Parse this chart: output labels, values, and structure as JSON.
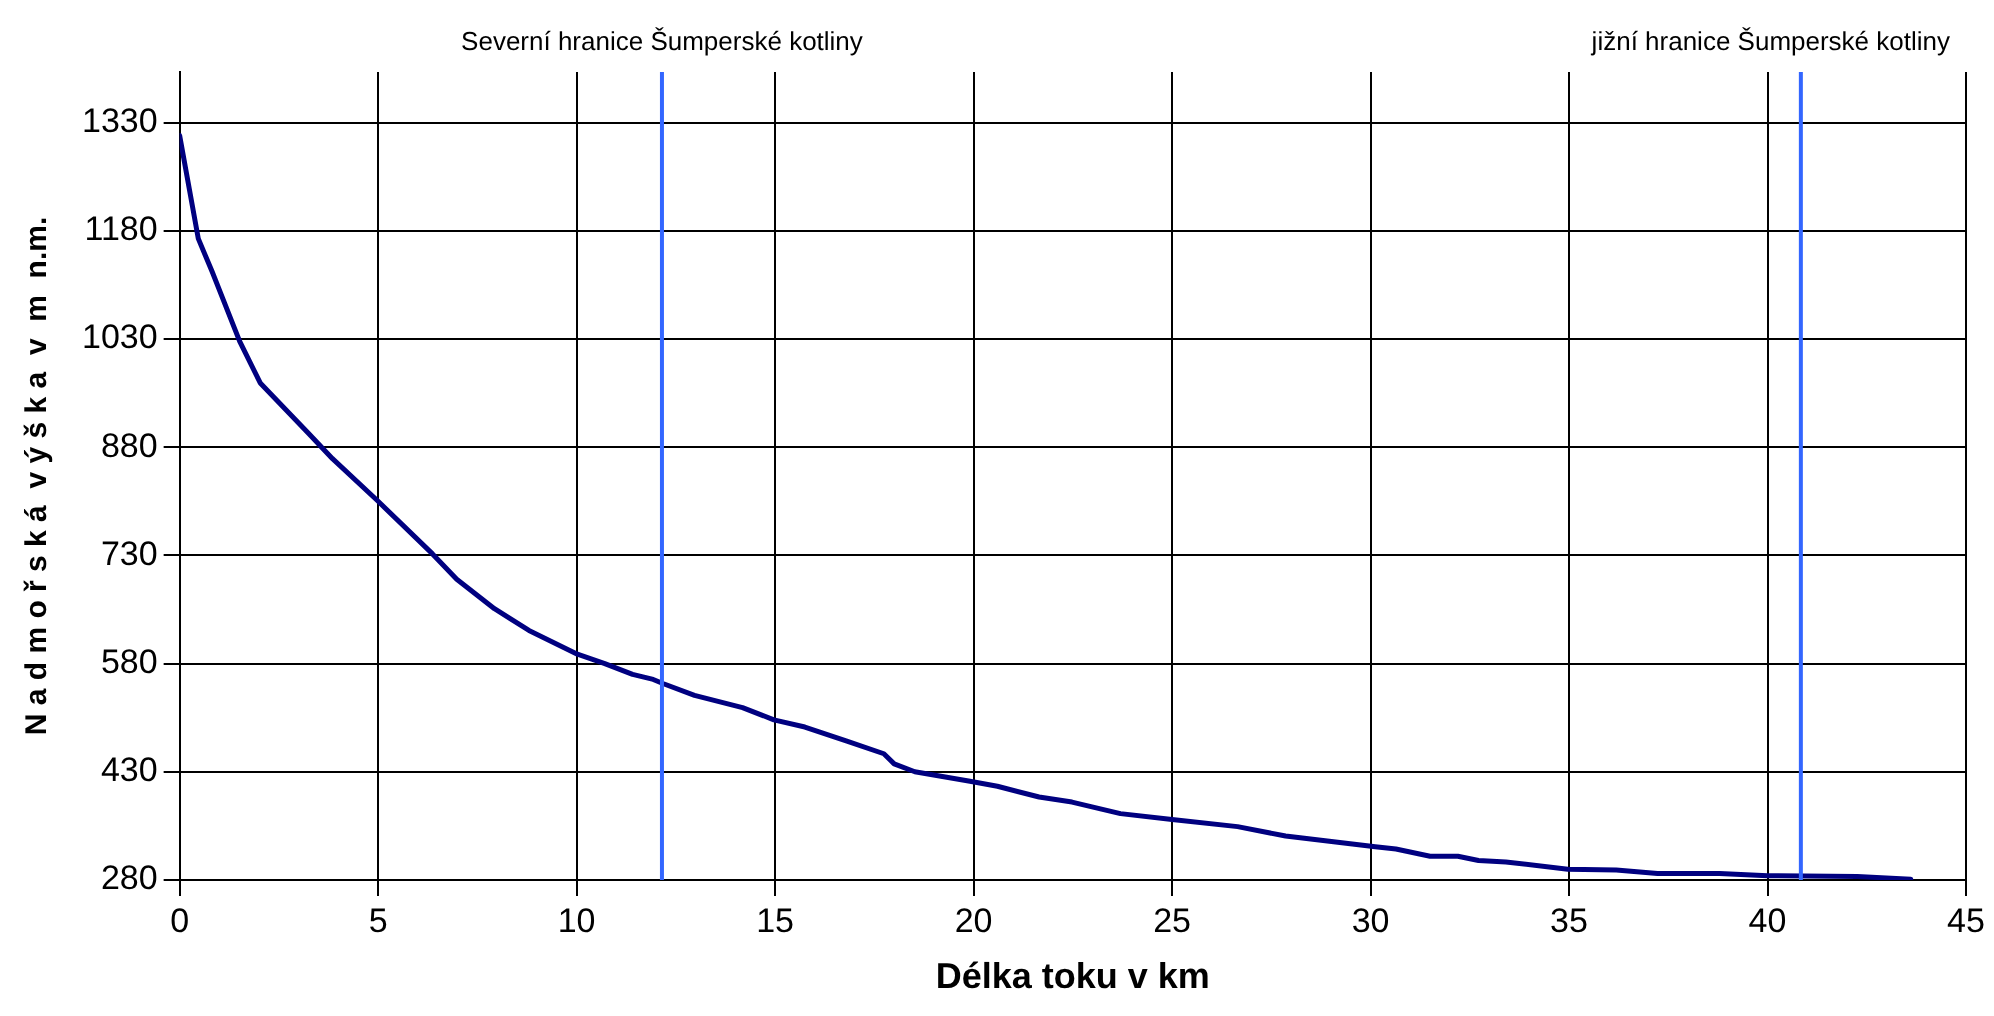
{
  "chart_data": {
    "type": "line",
    "xlabel": "Délka toku v km",
    "ylabel": "N a d m o ř s k á  v ý š k a  v  m  n.m.",
    "xlim": [
      0,
      45
    ],
    "xticks": [
      0,
      5,
      10,
      15,
      20,
      25,
      30,
      35,
      40,
      45
    ],
    "ylim": [
      280,
      1400
    ],
    "yticks": [
      280,
      430,
      580,
      730,
      880,
      1030,
      1180,
      1330
    ],
    "grid": true,
    "legend": false,
    "marker": "none",
    "line_style": "solid",
    "series": [
      {
        "color": "#000080",
        "x": [
          0,
          0.47,
          0.82,
          1.51,
          2.03,
          3.25,
          3.85,
          4.98,
          6.37,
          6.98,
          7.93,
          8.8,
          10.02,
          10.71,
          11.41,
          11.93,
          12.19,
          12.97,
          14.18,
          14.97,
          15.75,
          16.79,
          17.74,
          18.0,
          18.52,
          19.91,
          20.6,
          21.65,
          22.48,
          23.7,
          25,
          26.65,
          27.86,
          30.12,
          30.64,
          31.5,
          32.2,
          32.72,
          33.41,
          34.97,
          36.19,
          37.23,
          38.79,
          40,
          42.26,
          43.61
        ],
        "values": [
          1312,
          1169,
          1123,
          1027,
          969,
          899,
          864,
          806,
          732,
          697,
          656,
          626,
          593,
          580,
          565,
          558,
          552,
          536,
          519,
          502,
          492,
          473,
          455,
          441,
          430,
          417,
          410,
          395,
          388,
          372,
          364,
          354,
          341,
          326,
          323,
          313,
          313,
          307,
          305,
          295,
          294,
          289,
          289,
          286,
          285,
          281
        ]
      }
    ],
    "ref_lines": [
      {
        "axis": "x",
        "value": 12.15,
        "label": "Severní hranice Šumperské kotliny",
        "color": "#3366ff"
      },
      {
        "axis": "x",
        "value": 40.84,
        "label": "jižní hranice Šumperské kotliny",
        "color": "#3366ff"
      }
    ]
  }
}
